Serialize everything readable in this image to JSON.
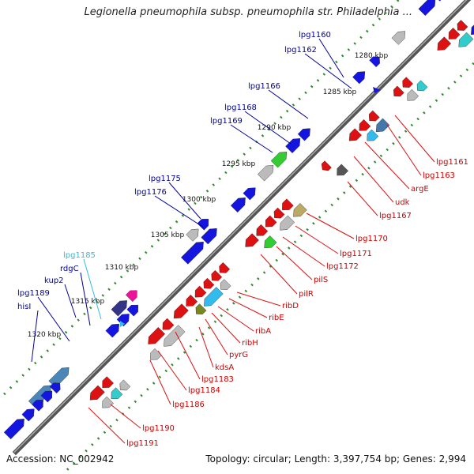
{
  "title": "Legionella pneumophila subsp. pneumophila str. Philadelphia ...",
  "footer": {
    "accession": "Accession: NC_002942",
    "summary": "Topology: circular; Length: 3,397,754 bp; Genes: 2,994"
  },
  "scale_labels": [
    "1280 kbp",
    "1285 kbp",
    "1290 kbp",
    "1295 kbp",
    "1300 kbp",
    "1305 kbp",
    "1310 kbp",
    "1315 kbp",
    "1320 kbp"
  ],
  "genes_upper": [
    {
      "label": "lpg1160",
      "color": "#000099"
    },
    {
      "label": "lpg1162",
      "color": "#000099"
    },
    {
      "label": "lpg1166",
      "color": "#000099"
    },
    {
      "label": "lpg1168",
      "color": "#000099"
    },
    {
      "label": "lpg1169",
      "color": "#000099"
    },
    {
      "label": "lpg1175",
      "color": "#000099"
    },
    {
      "label": "lpg1176",
      "color": "#000099"
    },
    {
      "label": "lpg1185",
      "color": "#33bbdd"
    },
    {
      "label": "rdgC",
      "color": "#000099"
    },
    {
      "label": "kup2",
      "color": "#000099"
    },
    {
      "label": "lpg1189",
      "color": "#000099"
    },
    {
      "label": "hisI",
      "color": "#000099"
    }
  ],
  "genes_lower": [
    {
      "label": "lpg1161",
      "color": "#cc0000"
    },
    {
      "label": "lpg1163",
      "color": "#cc0000"
    },
    {
      "label": "argE",
      "color": "#cc0000"
    },
    {
      "label": "udk",
      "color": "#cc0000"
    },
    {
      "label": "lpg1167",
      "color": "#cc0000"
    },
    {
      "label": "lpg1170",
      "color": "#cc0000"
    },
    {
      "label": "lpg1171",
      "color": "#cc0000"
    },
    {
      "label": "lpg1172",
      "color": "#cc0000"
    },
    {
      "label": "pilS",
      "color": "#cc0000"
    },
    {
      "label": "pilR",
      "color": "#cc0000"
    },
    {
      "label": "ribD",
      "color": "#cc0000"
    },
    {
      "label": "ribE",
      "color": "#cc0000"
    },
    {
      "label": "ribA",
      "color": "#cc0000"
    },
    {
      "label": "ribH",
      "color": "#cc0000"
    },
    {
      "label": "pyrG",
      "color": "#cc0000"
    },
    {
      "label": "kdsA",
      "color": "#cc0000"
    },
    {
      "label": "lpg1183",
      "color": "#cc0000"
    },
    {
      "label": "lpg1184",
      "color": "#cc0000"
    },
    {
      "label": "lpg1186",
      "color": "#cc0000"
    },
    {
      "label": "lpg1190",
      "color": "#cc0000"
    },
    {
      "label": "lpg1191",
      "color": "#cc0000"
    }
  ]
}
